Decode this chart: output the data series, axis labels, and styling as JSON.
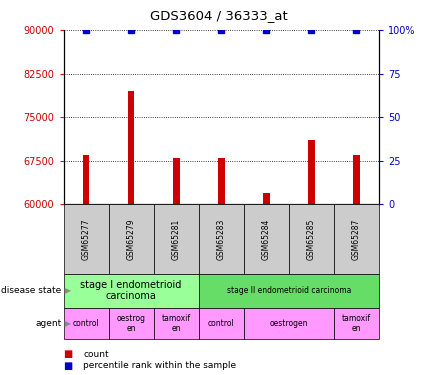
{
  "title": "GDS3604 / 36333_at",
  "samples": [
    "GSM65277",
    "GSM65279",
    "GSM65281",
    "GSM65283",
    "GSM65284",
    "GSM65285",
    "GSM65287"
  ],
  "counts": [
    68500,
    79500,
    68000,
    68000,
    62000,
    71000,
    68500
  ],
  "percentile_ranks": [
    100,
    100,
    100,
    100,
    100,
    100,
    100
  ],
  "y_min": 60000,
  "y_max": 90000,
  "y_ticks": [
    60000,
    67500,
    75000,
    82500,
    90000
  ],
  "y2_ticks": [
    0,
    25,
    50,
    75,
    100
  ],
  "bar_color": "#cc0000",
  "percentile_color": "#0000cc",
  "disease_state_groups": [
    {
      "label": "stage I endometrioid\ncarcinoma",
      "start": 0,
      "end": 3,
      "color": "#99ff99"
    },
    {
      "label": "stage II endometrioid carcinoma",
      "start": 3,
      "end": 7,
      "color": "#66dd66"
    }
  ],
  "agent_groups": [
    {
      "label": "control",
      "start": 0,
      "end": 1,
      "color": "#ff99ff"
    },
    {
      "label": "oestrog\nen",
      "start": 1,
      "end": 2,
      "color": "#ff99ff"
    },
    {
      "label": "tamoxif\nen",
      "start": 2,
      "end": 3,
      "color": "#ff99ff"
    },
    {
      "label": "control",
      "start": 3,
      "end": 4,
      "color": "#ff99ff"
    },
    {
      "label": "oestrogen",
      "start": 4,
      "end": 6,
      "color": "#ff99ff"
    },
    {
      "label": "tamoxif\nen",
      "start": 6,
      "end": 7,
      "color": "#ff99ff"
    }
  ],
  "legend_count_label": "count",
  "legend_pct_label": "percentile rank within the sample",
  "disease_state_label": "disease state",
  "agent_label": "agent",
  "tick_bg_color": "#cccccc"
}
